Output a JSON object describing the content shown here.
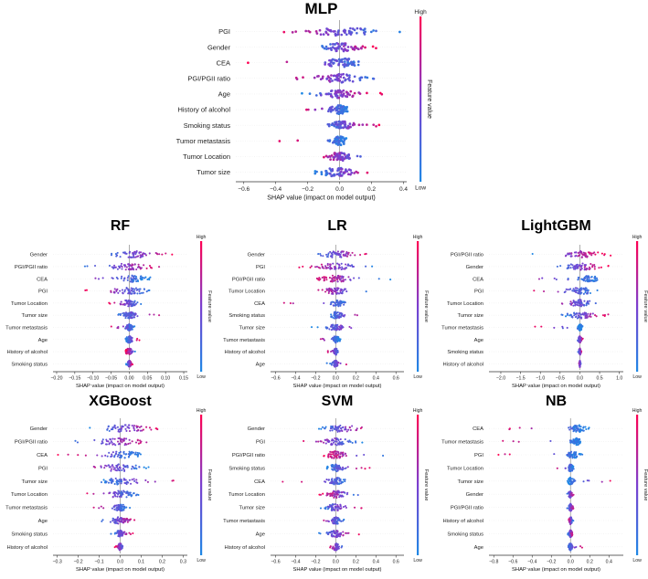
{
  "colors": {
    "low": "#1e88e5",
    "mid": "#7b3fd0",
    "high": "#ff0052",
    "axis": "#333333",
    "zero": "#999999",
    "row": "#eeeeee"
  },
  "colorbar": {
    "high_label": "High",
    "low_label": "Low",
    "title": "Feature value"
  },
  "chart_data": [
    {
      "type": "beeswarm",
      "title": "MLP",
      "xlabel": "SHAP value (impact on model output)",
      "xlim": [
        -0.65,
        0.42
      ],
      "xticks": [
        -0.6,
        -0.4,
        -0.2,
        0.0,
        0.2,
        0.4
      ],
      "xtick_labels": [
        "−0.6",
        "−0.4",
        "−0.2",
        "0.0",
        "0.2",
        "0.4"
      ],
      "features": [
        "PGI",
        "Gender",
        "CEA",
        "PGI/PGII ratio",
        "Age",
        "History of alcohol",
        "Smoking status",
        "Tumor metastasis",
        "Tumor Location",
        "Tumor size"
      ],
      "series": [
        {
          "feature": "PGI",
          "min": -0.5,
          "max": 0.38,
          "low_side": "right",
          "center": 0.0,
          "spread": 0.19
        },
        {
          "feature": "Gender",
          "min": -0.2,
          "max": 0.25,
          "low_side": "left",
          "center": 0.02,
          "spread": 0.12
        },
        {
          "feature": "CEA",
          "min": -0.6,
          "max": 0.25,
          "low_side": "right",
          "center": 0.02,
          "spread": 0.12
        },
        {
          "feature": "PGI/PGII ratio",
          "min": -0.45,
          "max": 0.35,
          "low_side": "right",
          "center": 0.0,
          "spread": 0.14
        },
        {
          "feature": "Age",
          "min": -0.3,
          "max": 0.28,
          "low_side": "left",
          "center": 0.0,
          "spread": 0.1
        },
        {
          "feature": "History of alcohol",
          "min": -0.25,
          "max": 0.05,
          "low_side": "right",
          "center": 0.0,
          "spread": 0.06
        },
        {
          "feature": "Smoking status",
          "min": -0.15,
          "max": 0.27,
          "low_side": "left",
          "center": 0.0,
          "spread": 0.08
        },
        {
          "feature": "Tumor metastasis",
          "min": -0.38,
          "max": 0.05,
          "low_side": "right",
          "center": 0.0,
          "spread": 0.05
        },
        {
          "feature": "Tumor Location",
          "min": -0.2,
          "max": 0.25,
          "low_side": "right",
          "center": 0.0,
          "spread": 0.08
        },
        {
          "feature": "Tumor size",
          "min": -0.18,
          "max": 0.28,
          "low_side": "left",
          "center": -0.02,
          "spread": 0.1
        }
      ]
    },
    {
      "type": "beeswarm",
      "title": "RF",
      "xlabel": "SHAP value (impact on model output)",
      "xlim": [
        -0.21,
        0.16
      ],
      "xticks": [
        -0.2,
        -0.15,
        -0.1,
        -0.05,
        0.0,
        0.05,
        0.1,
        0.15
      ],
      "xtick_labels": [
        "−0.20",
        "−0.15",
        "−0.10",
        "−0.05",
        "0.00",
        "0.05",
        "0.10",
        "0.15"
      ],
      "features": [
        "Gender",
        "PGI/PGII ratio",
        "CEA",
        "PGI",
        "Tumor Location",
        "Tumor size",
        "Tumor metastasis",
        "Age",
        "History of alcohol",
        "Smoking status"
      ],
      "series": [
        {
          "feature": "Gender",
          "min": -0.09,
          "max": 0.15,
          "low_side": "left",
          "center": 0.02,
          "spread": 0.06
        },
        {
          "feature": "PGI/PGII ratio",
          "min": -0.15,
          "max": 0.12,
          "low_side": "left",
          "center": 0.0,
          "spread": 0.06
        },
        {
          "feature": "CEA",
          "min": -0.2,
          "max": 0.06,
          "low_side": "right",
          "center": 0.01,
          "spread": 0.04
        },
        {
          "feature": "PGI",
          "min": -0.13,
          "max": 0.08,
          "low_side": "right",
          "center": 0.0,
          "spread": 0.05
        },
        {
          "feature": "Tumor Location",
          "min": -0.06,
          "max": 0.04,
          "low_side": "right",
          "center": 0.0,
          "spread": 0.02
        },
        {
          "feature": "Tumor size",
          "min": -0.05,
          "max": 0.11,
          "low_side": "left",
          "center": 0.0,
          "spread": 0.02
        },
        {
          "feature": "Tumor metastasis",
          "min": -0.06,
          "max": 0.02,
          "low_side": "right",
          "center": 0.0,
          "spread": 0.01
        },
        {
          "feature": "Age",
          "min": -0.01,
          "max": 0.03,
          "low_side": "left",
          "center": 0.0,
          "spread": 0.01
        },
        {
          "feature": "History of alcohol",
          "min": -0.01,
          "max": 0.02,
          "low_side": "right",
          "center": 0.0,
          "spread": 0.01
        },
        {
          "feature": "Smoking status",
          "min": -0.01,
          "max": 0.01,
          "low_side": "left",
          "center": 0.0,
          "spread": 0.005
        }
      ]
    },
    {
      "type": "beeswarm",
      "title": "LR",
      "xlabel": "SHAP value (impact on model output)",
      "xlim": [
        -0.65,
        0.68
      ],
      "xticks": [
        -0.6,
        -0.4,
        -0.2,
        0.0,
        0.2,
        0.4,
        0.6
      ],
      "xtick_labels": [
        "−0.6",
        "−0.4",
        "−0.2",
        "0.0",
        "0.2",
        "0.4",
        "0.6"
      ],
      "features": [
        "Gender",
        "PGI",
        "PGI/PGII ratio",
        "Tumor Location",
        "CEA",
        "Smoking status",
        "Tumor size",
        "Tumor metastasis",
        "History of alcohol",
        "Age"
      ],
      "series": [
        {
          "feature": "Gender",
          "min": -0.25,
          "max": 0.35,
          "low_side": "left",
          "center": 0.02,
          "spread": 0.15
        },
        {
          "feature": "PGI",
          "min": -0.45,
          "max": 0.5,
          "low_side": "right",
          "center": 0.0,
          "spread": 0.18
        },
        {
          "feature": "PGI/PGII ratio",
          "min": -0.3,
          "max": 0.65,
          "low_side": "right",
          "center": 0.0,
          "spread": 0.14
        },
        {
          "feature": "Tumor Location",
          "min": -0.3,
          "max": 0.35,
          "low_side": "right",
          "center": 0.0,
          "spread": 0.1
        },
        {
          "feature": "CEA",
          "min": -0.6,
          "max": 0.2,
          "low_side": "right",
          "center": 0.02,
          "spread": 0.07
        },
        {
          "feature": "Smoking status",
          "min": -0.1,
          "max": 0.3,
          "low_side": "left",
          "center": 0.0,
          "spread": 0.06
        },
        {
          "feature": "Tumor size",
          "min": -0.25,
          "max": 0.42,
          "low_side": "left",
          "center": 0.0,
          "spread": 0.08
        },
        {
          "feature": "Tumor metastasis",
          "min": -0.25,
          "max": 0.05,
          "low_side": "right",
          "center": 0.0,
          "spread": 0.04
        },
        {
          "feature": "History of alcohol",
          "min": -0.1,
          "max": 0.05,
          "low_side": "right",
          "center": 0.0,
          "spread": 0.02
        },
        {
          "feature": "Age",
          "min": -0.1,
          "max": 0.15,
          "low_side": "left",
          "center": 0.0,
          "spread": 0.03
        }
      ]
    },
    {
      "type": "beeswarm",
      "title": "LightGBM",
      "xlabel": "SHAP value (impact on model output)",
      "xlim": [
        -2.3,
        1.1
      ],
      "xticks": [
        -2.0,
        -1.5,
        -1.0,
        -0.5,
        0.0,
        0.5,
        1.0
      ],
      "xtick_labels": [
        "−2.0",
        "−1.5",
        "−1.0",
        "−0.5",
        "0.0",
        "0.5",
        "1.0"
      ],
      "features": [
        "PGI/PGII ratio",
        "Gender",
        "CEA",
        "PGI",
        "Tumor Location",
        "Tumor size",
        "Tumor metastasis",
        "Age",
        "Smoking status",
        "History of alcohol"
      ],
      "series": [
        {
          "feature": "PGI/PGII ratio",
          "min": -1.5,
          "max": 0.8,
          "low_side": "left",
          "center": 0.1,
          "spread": 0.45
        },
        {
          "feature": "Gender",
          "min": -0.7,
          "max": 0.75,
          "low_side": "left",
          "center": 0.1,
          "spread": 0.45
        },
        {
          "feature": "CEA",
          "min": -2.2,
          "max": 0.6,
          "low_side": "right",
          "center": 0.2,
          "spread": 0.3
        },
        {
          "feature": "PGI",
          "min": -1.6,
          "max": 0.6,
          "low_side": "right",
          "center": 0.0,
          "spread": 0.35
        },
        {
          "feature": "Tumor Location",
          "min": -1.0,
          "max": 0.6,
          "low_side": "right",
          "center": 0.0,
          "spread": 0.3
        },
        {
          "feature": "Tumor size",
          "min": -0.5,
          "max": 0.8,
          "low_side": "left",
          "center": 0.0,
          "spread": 0.3
        },
        {
          "feature": "Tumor metastasis",
          "min": -1.2,
          "max": 0.1,
          "low_side": "right",
          "center": 0.0,
          "spread": 0.05
        },
        {
          "feature": "Age",
          "min": -0.1,
          "max": 0.1,
          "low_side": "left",
          "center": 0.0,
          "spread": 0.04
        },
        {
          "feature": "Smoking status",
          "min": -0.05,
          "max": 0.05,
          "low_side": "left",
          "center": 0.0,
          "spread": 0.02
        },
        {
          "feature": "History of alcohol",
          "min": -0.03,
          "max": 0.03,
          "low_side": "right",
          "center": 0.0,
          "spread": 0.01
        }
      ]
    },
    {
      "type": "beeswarm",
      "title": "XGBoost",
      "xlabel": "SHAP value (impact on model output)",
      "xlim": [
        -0.32,
        0.32
      ],
      "xticks": [
        -0.3,
        -0.2,
        -0.1,
        0.0,
        0.1,
        0.2,
        0.3
      ],
      "xtick_labels": [
        "−0.3",
        "−0.2",
        "−0.1",
        "0.0",
        "0.1",
        "0.2",
        "0.3"
      ],
      "features": [
        "Gender",
        "PGI/PGII ratio",
        "CEA",
        "PGI",
        "Tumor size",
        "Tumor Location",
        "Tumor metastasis",
        "Age",
        "Smoking status",
        "History of alcohol"
      ],
      "series": [
        {
          "feature": "Gender",
          "min": -0.15,
          "max": 0.22,
          "low_side": "left",
          "center": 0.02,
          "spread": 0.1
        },
        {
          "feature": "PGI/PGII ratio",
          "min": -0.25,
          "max": 0.2,
          "low_side": "left",
          "center": 0.0,
          "spread": 0.1
        },
        {
          "feature": "CEA",
          "min": -0.3,
          "max": 0.1,
          "low_side": "right",
          "center": 0.02,
          "spread": 0.08
        },
        {
          "feature": "PGI",
          "min": -0.25,
          "max": 0.15,
          "low_side": "right",
          "center": 0.0,
          "spread": 0.1
        },
        {
          "feature": "Tumor size",
          "min": -0.1,
          "max": 0.28,
          "low_side": "left",
          "center": 0.0,
          "spread": 0.08
        },
        {
          "feature": "Tumor Location",
          "min": -0.2,
          "max": 0.1,
          "low_side": "right",
          "center": 0.0,
          "spread": 0.06
        },
        {
          "feature": "Tumor metastasis",
          "min": -0.15,
          "max": 0.05,
          "low_side": "right",
          "center": 0.0,
          "spread": 0.03
        },
        {
          "feature": "Age",
          "min": -0.1,
          "max": 0.1,
          "low_side": "left",
          "center": 0.0,
          "spread": 0.04
        },
        {
          "feature": "Smoking status",
          "min": -0.05,
          "max": 0.08,
          "low_side": "left",
          "center": 0.0,
          "spread": 0.02
        },
        {
          "feature": "History of alcohol",
          "min": -0.03,
          "max": 0.03,
          "low_side": "right",
          "center": 0.0,
          "spread": 0.01
        }
      ]
    },
    {
      "type": "beeswarm",
      "title": "SVM",
      "xlabel": "SHAP value (impact on model output)",
      "xlim": [
        -0.65,
        0.68
      ],
      "xticks": [
        -0.6,
        -0.4,
        -0.2,
        0.0,
        0.2,
        0.4,
        0.6
      ],
      "xtick_labels": [
        "−0.6",
        "−0.4",
        "−0.2",
        "0.0",
        "0.2",
        "0.4",
        "0.6"
      ],
      "features": [
        "Gender",
        "PGI",
        "PGI/PGII ratio",
        "Smoking status",
        "CEA",
        "Tumor Location",
        "Tumor size",
        "Tumor metastasis",
        "Age",
        "History of alcohol"
      ],
      "series": [
        {
          "feature": "Gender",
          "min": -0.2,
          "max": 0.38,
          "low_side": "left",
          "center": 0.05,
          "spread": 0.15
        },
        {
          "feature": "PGI",
          "min": -0.4,
          "max": 0.3,
          "low_side": "right",
          "center": 0.0,
          "spread": 0.12
        },
        {
          "feature": "PGI/PGII ratio",
          "min": -0.2,
          "max": 0.65,
          "low_side": "right",
          "center": 0.0,
          "spread": 0.1
        },
        {
          "feature": "Smoking status",
          "min": -0.1,
          "max": 0.35,
          "low_side": "left",
          "center": 0.0,
          "spread": 0.08
        },
        {
          "feature": "CEA",
          "min": -0.55,
          "max": 0.2,
          "low_side": "right",
          "center": 0.0,
          "spread": 0.08
        },
        {
          "feature": "Tumor Location",
          "min": -0.2,
          "max": 0.3,
          "low_side": "right",
          "center": 0.0,
          "spread": 0.09
        },
        {
          "feature": "Tumor size",
          "min": -0.2,
          "max": 0.3,
          "low_side": "left",
          "center": 0.0,
          "spread": 0.08
        },
        {
          "feature": "Tumor metastasis",
          "min": -0.2,
          "max": 0.1,
          "low_side": "right",
          "center": 0.0,
          "spread": 0.05
        },
        {
          "feature": "Age",
          "min": -0.2,
          "max": 0.25,
          "low_side": "left",
          "center": 0.0,
          "spread": 0.07
        },
        {
          "feature": "History of alcohol",
          "min": -0.1,
          "max": 0.1,
          "low_side": "right",
          "center": 0.0,
          "spread": 0.03
        }
      ]
    },
    {
      "type": "beeswarm",
      "title": "NB",
      "xlabel": "SHAP value (impact on model output)",
      "xlim": [
        -0.85,
        0.55
      ],
      "xticks": [
        -0.8,
        -0.6,
        -0.4,
        -0.2,
        0.0,
        0.2,
        0.4
      ],
      "xtick_labels": [
        "−0.8",
        "−0.6",
        "−0.4",
        "−0.2",
        "0.0",
        "0.2",
        "0.4"
      ],
      "features": [
        "CEA",
        "Tumor metastasis",
        "PGI",
        "Tumor Location",
        "Tumor size",
        "Gender",
        "PGI/PGII ratio",
        "History of alcohol",
        "Smoking status",
        "Age"
      ],
      "series": [
        {
          "feature": "CEA",
          "min": -0.8,
          "max": 0.2,
          "low_side": "right",
          "center": 0.08,
          "spread": 0.08
        },
        {
          "feature": "Tumor metastasis",
          "min": -0.75,
          "max": 0.12,
          "low_side": "right",
          "center": 0.06,
          "spread": 0.05
        },
        {
          "feature": "PGI",
          "min": -0.8,
          "max": 0.15,
          "low_side": "right",
          "center": 0.03,
          "spread": 0.06
        },
        {
          "feature": "Tumor Location",
          "min": -0.2,
          "max": 0.05,
          "low_side": "right",
          "center": 0.0,
          "spread": 0.03
        },
        {
          "feature": "Tumor size",
          "min": -0.05,
          "max": 0.5,
          "low_side": "left",
          "center": 0.0,
          "spread": 0.03
        },
        {
          "feature": "Gender",
          "min": -0.05,
          "max": 0.05,
          "low_side": "left",
          "center": 0.0,
          "spread": 0.02
        },
        {
          "feature": "PGI/PGII ratio",
          "min": -0.05,
          "max": 0.05,
          "low_side": "left",
          "center": 0.0,
          "spread": 0.02
        },
        {
          "feature": "History of alcohol",
          "min": -0.03,
          "max": 0.03,
          "low_side": "right",
          "center": 0.0,
          "spread": 0.015
        },
        {
          "feature": "Smoking status",
          "min": -0.03,
          "max": 0.03,
          "low_side": "left",
          "center": 0.0,
          "spread": 0.015
        },
        {
          "feature": "Age",
          "min": -0.05,
          "max": 0.15,
          "low_side": "left",
          "center": 0.0,
          "spread": 0.02
        }
      ]
    }
  ]
}
